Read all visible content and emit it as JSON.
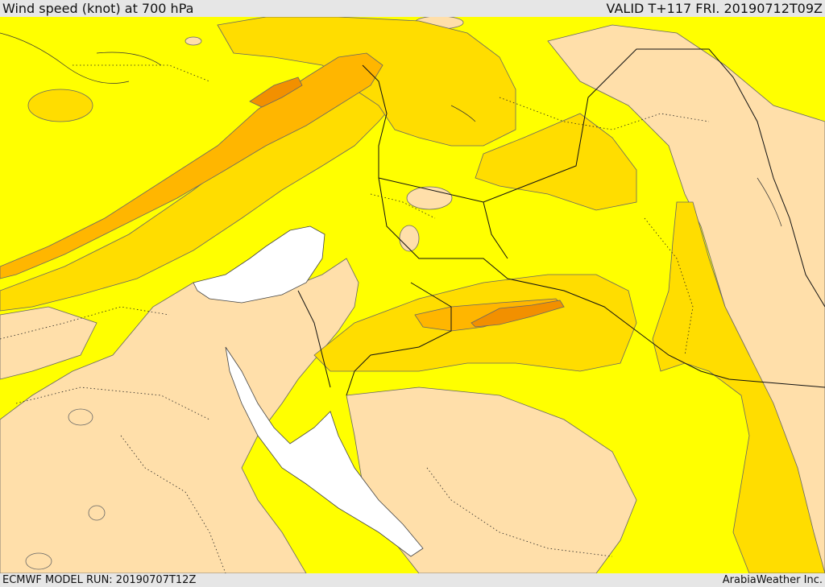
{
  "header": {
    "title": "Wind speed (knot) at 700 hPa",
    "valid": "VALID T+117 FRI. 20190712T09Z"
  },
  "footer": {
    "model_run": "ECMWF MODEL RUN: 20190707T12Z",
    "credit": "ArabiaWeather Inc."
  },
  "colors": {
    "band_lowest": "#ffdfaa",
    "band_low": "#ffff00",
    "band_mid": "#ffdd00",
    "band_high": "#ffb600",
    "band_highest": "#f29000",
    "water_bodies": "#ffffff",
    "contour_line": "#555555",
    "border_line": "#111111"
  }
}
